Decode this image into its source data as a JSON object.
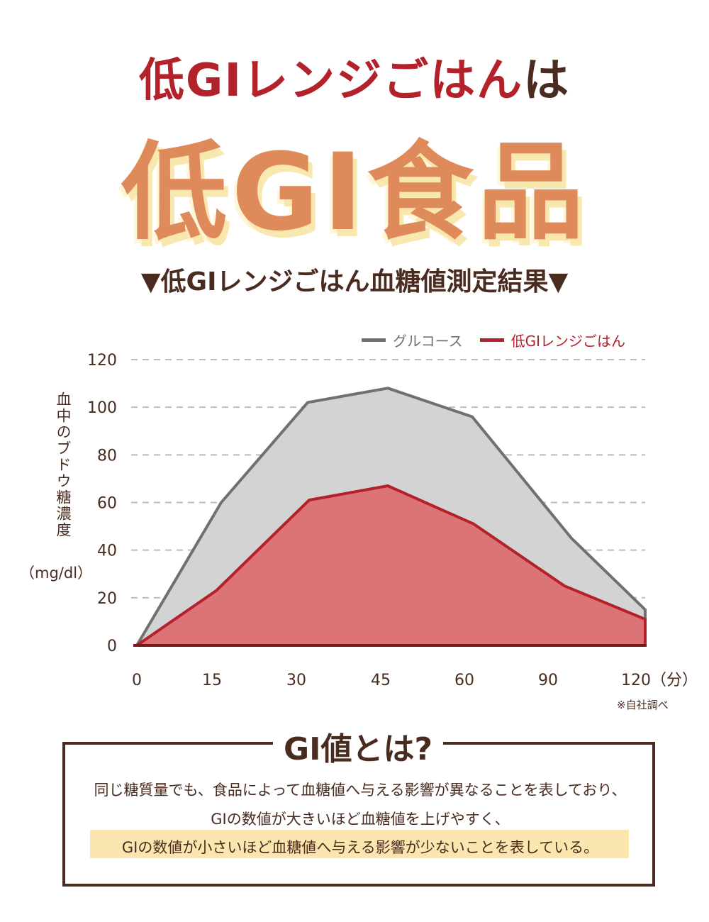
{
  "header": {
    "line1_red": "低GIレンジごはん",
    "line1_brown": "は",
    "line2": "低GI食品",
    "subtitle": "▼低GIレンジごはん血糖値測定結果▼"
  },
  "colors": {
    "red": "#b3212b",
    "orange": "#de8a5a",
    "brown": "#4a2b1f",
    "glucose_line": "#707070",
    "glucose_fill": "#d3d3d3",
    "rice_fill": "#dc7377"
  },
  "chart_data": {
    "type": "area",
    "x": [
      0,
      15,
      30,
      45,
      60,
      90,
      120
    ],
    "x_tick_labels": [
      "0",
      "15",
      "30",
      "45",
      "60",
      "90",
      "120（分）"
    ],
    "ylabel": "血中のブドウ糖濃度",
    "yunit": "（mg/dl）",
    "ylim": [
      0,
      120
    ],
    "yticks": [
      0,
      20,
      40,
      60,
      80,
      100,
      120
    ],
    "grid": "horizontal dashed",
    "legend": "top-right",
    "series": [
      {
        "name": "グルコース",
        "values": [
          0,
          60,
          102,
          108,
          96,
          45,
          15
        ],
        "color": "#707070"
      },
      {
        "name": "低GIレンジごはん",
        "values": [
          0,
          23,
          61,
          67,
          51,
          25,
          11
        ],
        "color": "#b3212b"
      }
    ],
    "note": "※自社調べ"
  },
  "gi_box": {
    "title": "GI値とは?",
    "lines": [
      "同じ糖質量でも、食品によって血糖値へ与える影響が異なることを表しており、",
      "GIの数値が大きいほど血糖値を上げやすく、",
      "GIの数値が小さいほど血糖値へ与える影響が少ないことを表している。"
    ]
  }
}
